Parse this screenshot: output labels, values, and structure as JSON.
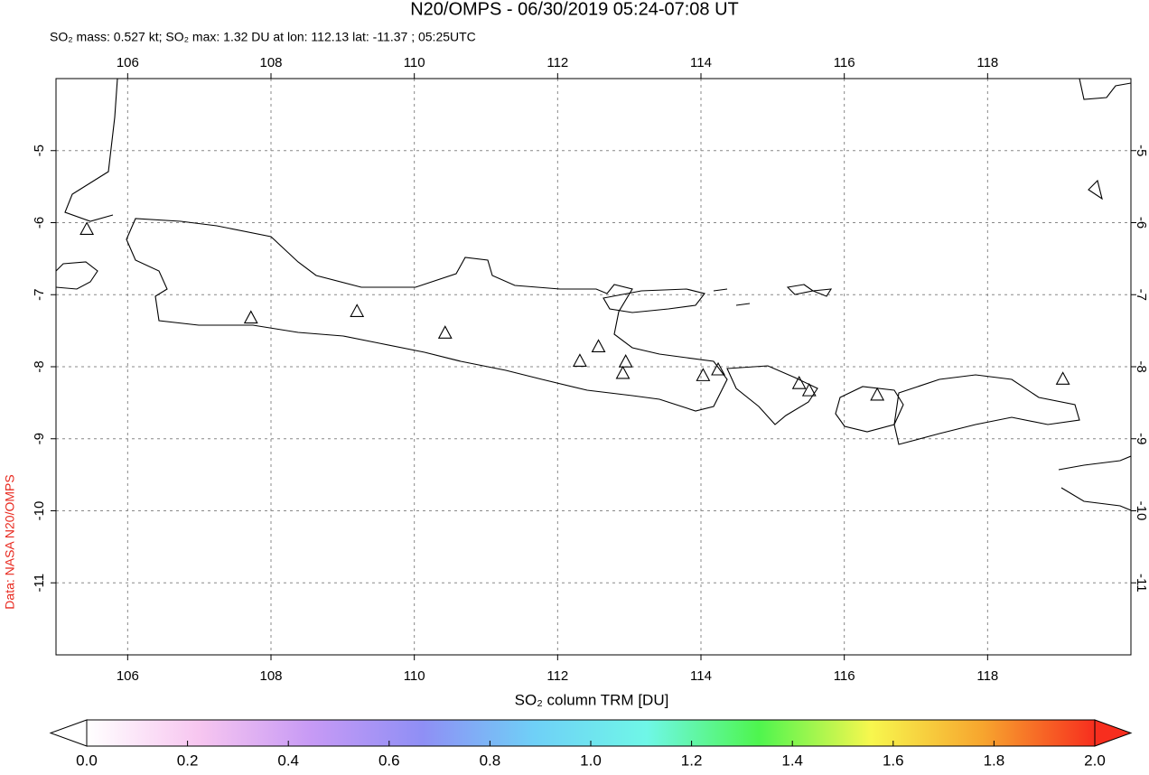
{
  "chart_data": {
    "type": "map",
    "title": "N20/OMPS - 06/30/2019 05:24-07:08 UT",
    "subtitle": "SO₂ mass: 0.527 kt; SO₂ max: 1.32 DU at lon: 112.13 lat: -11.37 ; 05:25UTC",
    "credit": "Data: NASA N20/OMPS",
    "xlim": [
      105,
      120
    ],
    "ylim": [
      -12,
      -4
    ],
    "xticks": [
      106,
      108,
      110,
      112,
      114,
      116,
      118
    ],
    "yticks": [
      -11,
      -10,
      -9,
      -8,
      -7,
      -6,
      -5
    ],
    "grid": true,
    "volcanoes": {
      "lon": [
        105.43,
        107.72,
        109.2,
        110.43,
        112.31,
        112.57,
        112.95,
        112.91,
        114.03,
        114.24,
        115.37,
        115.51,
        116.46,
        119.05
      ],
      "lat": [
        -6.1,
        -7.33,
        -7.24,
        -7.54,
        -7.93,
        -7.73,
        -7.94,
        -8.1,
        -8.13,
        -8.05,
        -8.24,
        -8.34,
        -8.4,
        -8.18
      ]
    },
    "colorbar": {
      "label": "SO₂ column TRM [DU]",
      "clim": [
        0,
        2
      ],
      "ticks": [
        {
          "value": 0,
          "label": "0.0"
        },
        0.2,
        0.4,
        0.6,
        0.8,
        {
          "value": 1,
          "label": "1.0"
        },
        1.2,
        1.4,
        1.6,
        1.8,
        {
          "value": 2,
          "label": "2.0"
        }
      ],
      "colors": [
        "#ffffff",
        "#f7c6f0",
        "#c79af5",
        "#8f8ff5",
        "#6fd0f7",
        "#6ff7e7",
        "#4ef54e",
        "#f7f74e",
        "#f7a52e",
        "#f72e1e"
      ]
    }
  }
}
